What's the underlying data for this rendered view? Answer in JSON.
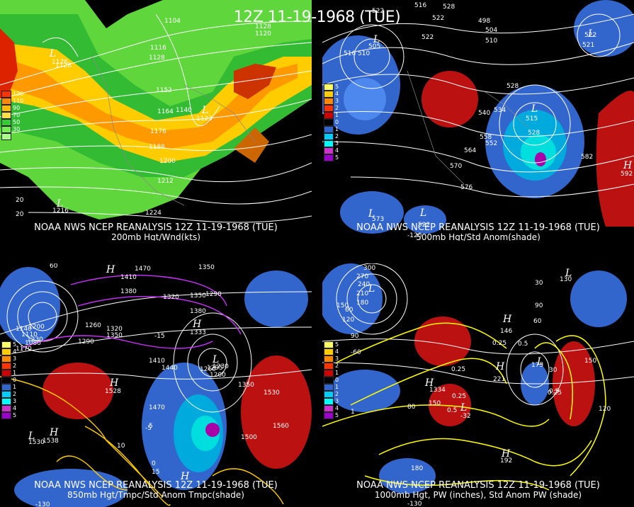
{
  "title": "12Z 11-19-1968 (TUE)",
  "panels": [
    {
      "id": "200mb",
      "line1": "NOAA NWS NCEP REANALYSIS 12Z 11-19-1968 (TUE)",
      "line2": "200mb Hgt/Wnd(kts)",
      "scale": [
        "130",
        "110",
        "90",
        "70",
        "50",
        "30"
      ],
      "contour_labels": [
        "1104",
        "1116",
        "1128",
        "1128",
        "1152",
        "1140",
        "1164",
        "1176",
        "1188",
        "1200",
        "1212",
        "1224",
        "1128",
        "1120",
        "20",
        "20"
      ],
      "centers": [
        {
          "t": "L",
          "v": "1126"
        },
        {
          "t": "L",
          "v": "1123"
        },
        {
          "t": "L",
          "v": "1216"
        }
      ]
    },
    {
      "id": "500mb",
      "line1": "NOAA NWS NCEP REANALYSIS 12Z 11-19-1968 (TUE)",
      "line2": "500mb Hgt/Std Anom(shade)",
      "scale": [
        "5",
        "4",
        "3",
        "2",
        "1",
        "0",
        "1",
        "2",
        "3",
        "4",
        "5"
      ],
      "contour_labels": [
        "522",
        "516",
        "528",
        "522",
        "498",
        "504",
        "510",
        "516",
        "510",
        "522",
        "528",
        "540",
        "534",
        "552",
        "558",
        "564",
        "570",
        "576",
        "582",
        "528",
        "522",
        "-120"
      ],
      "centers": [
        {
          "t": "L",
          "v": "505"
        },
        {
          "t": "L",
          "v": "521"
        },
        {
          "t": "L",
          "v": "515"
        },
        {
          "t": "H",
          "v": "592"
        },
        {
          "t": "L",
          "v": "573"
        },
        {
          "t": "L",
          "v": "522"
        }
      ]
    },
    {
      "id": "850mb",
      "line1": "NOAA NWS NCEP REANALYSIS 12Z 11-19-1968 (TUE)",
      "line2": "850mb Hgt/Tmpc/Std Anom Tmpc(shade)",
      "scale": [
        "5",
        "4",
        "3",
        "2",
        "1",
        "0",
        "1",
        "2",
        "3",
        "4",
        "5"
      ],
      "contour_labels": [
        "1350",
        "1470",
        "1410",
        "1380",
        "1290",
        "1320",
        "1350",
        "1380",
        "1200",
        "1140",
        "1110",
        "1080",
        "1260",
        "1290",
        "1320",
        "1350",
        "1230",
        "1170",
        "1440",
        "1410",
        "1260",
        "1230",
        "1200",
        "1350",
        "1530",
        "1560",
        "1500",
        "1470",
        "1530",
        "-15",
        "-5",
        "5",
        "10",
        "15",
        "0",
        "-130",
        "60"
      ],
      "centers": [
        {
          "t": "H",
          "v": ""
        },
        {
          "t": "H",
          "v": "1333"
        },
        {
          "t": "L",
          "v": "1295"
        },
        {
          "t": "H",
          "v": "1528"
        },
        {
          "t": "H",
          "v": "1538"
        },
        {
          "t": "H",
          "v": ""
        },
        {
          "t": "L",
          "v": ""
        }
      ]
    },
    {
      "id": "1000mb",
      "line1": "NOAA NWS NCEP REANALYSIS 12Z 11-19-1968 (TUE)",
      "line2": "1000mb Hgt, PW (inches), Std Anom PW (shade)",
      "scale": [
        "5",
        "4",
        "3",
        "2",
        "1",
        "0",
        "1",
        "2",
        "3",
        "4",
        "5"
      ],
      "contour_labels": [
        "300",
        "270",
        "240",
        "210",
        "180",
        "150",
        "120",
        "90",
        "60",
        "30",
        "-60",
        "0.25",
        "0.5",
        "1",
        "0.25",
        "0.25",
        "0.5",
        "150",
        "180",
        "90",
        "60",
        "30",
        "150",
        "120",
        "0.25",
        "0.5",
        "80",
        "-130"
      ],
      "centers": [
        {
          "t": "L",
          "v": ""
        },
        {
          "t": "H",
          "v": "146"
        },
        {
          "t": "L",
          "v": "130"
        },
        {
          "t": "H",
          "v": "221"
        },
        {
          "t": "L",
          "v": "175"
        },
        {
          "t": "H",
          "v": "1334"
        },
        {
          "t": "L",
          "v": "-32"
        },
        {
          "t": "H",
          "v": "192"
        }
      ]
    }
  ],
  "colors": {
    "wind": [
      "#ff0000",
      "#ff6600",
      "#ff9900",
      "#ffcc00",
      "#33cc33",
      "#66ee44",
      "#99ff66"
    ],
    "anom_pos": [
      "#ffff66",
      "#ffcc00",
      "#ff8800",
      "#ff3300",
      "#cc0000",
      "#990000"
    ],
    "anom_neg": [
      "#3366cc",
      "#00ccff",
      "#00ffff",
      "#3399ff",
      "#cc33cc",
      "#9900cc"
    ]
  }
}
